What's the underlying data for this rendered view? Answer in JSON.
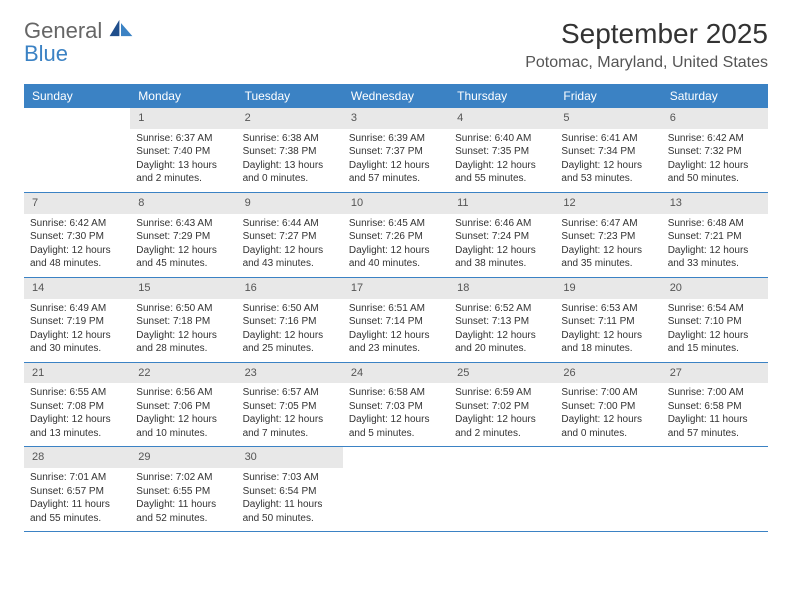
{
  "logo": {
    "line1": "General",
    "line2": "Blue"
  },
  "header": {
    "month_title": "September 2025",
    "location": "Potomac, Maryland, United States"
  },
  "colors": {
    "brand_blue": "#3b82c4",
    "header_bg": "#3b82c4",
    "header_text": "#ffffff",
    "daynum_bg": "#e8e8e8",
    "text": "#333333"
  },
  "weekdays": [
    "Sunday",
    "Monday",
    "Tuesday",
    "Wednesday",
    "Thursday",
    "Friday",
    "Saturday"
  ],
  "weeks": [
    [
      null,
      {
        "n": "1",
        "sr": "Sunrise: 6:37 AM",
        "ss": "Sunset: 7:40 PM",
        "dl": "Daylight: 13 hours and 2 minutes."
      },
      {
        "n": "2",
        "sr": "Sunrise: 6:38 AM",
        "ss": "Sunset: 7:38 PM",
        "dl": "Daylight: 13 hours and 0 minutes."
      },
      {
        "n": "3",
        "sr": "Sunrise: 6:39 AM",
        "ss": "Sunset: 7:37 PM",
        "dl": "Daylight: 12 hours and 57 minutes."
      },
      {
        "n": "4",
        "sr": "Sunrise: 6:40 AM",
        "ss": "Sunset: 7:35 PM",
        "dl": "Daylight: 12 hours and 55 minutes."
      },
      {
        "n": "5",
        "sr": "Sunrise: 6:41 AM",
        "ss": "Sunset: 7:34 PM",
        "dl": "Daylight: 12 hours and 53 minutes."
      },
      {
        "n": "6",
        "sr": "Sunrise: 6:42 AM",
        "ss": "Sunset: 7:32 PM",
        "dl": "Daylight: 12 hours and 50 minutes."
      }
    ],
    [
      {
        "n": "7",
        "sr": "Sunrise: 6:42 AM",
        "ss": "Sunset: 7:30 PM",
        "dl": "Daylight: 12 hours and 48 minutes."
      },
      {
        "n": "8",
        "sr": "Sunrise: 6:43 AM",
        "ss": "Sunset: 7:29 PM",
        "dl": "Daylight: 12 hours and 45 minutes."
      },
      {
        "n": "9",
        "sr": "Sunrise: 6:44 AM",
        "ss": "Sunset: 7:27 PM",
        "dl": "Daylight: 12 hours and 43 minutes."
      },
      {
        "n": "10",
        "sr": "Sunrise: 6:45 AM",
        "ss": "Sunset: 7:26 PM",
        "dl": "Daylight: 12 hours and 40 minutes."
      },
      {
        "n": "11",
        "sr": "Sunrise: 6:46 AM",
        "ss": "Sunset: 7:24 PM",
        "dl": "Daylight: 12 hours and 38 minutes."
      },
      {
        "n": "12",
        "sr": "Sunrise: 6:47 AM",
        "ss": "Sunset: 7:23 PM",
        "dl": "Daylight: 12 hours and 35 minutes."
      },
      {
        "n": "13",
        "sr": "Sunrise: 6:48 AM",
        "ss": "Sunset: 7:21 PM",
        "dl": "Daylight: 12 hours and 33 minutes."
      }
    ],
    [
      {
        "n": "14",
        "sr": "Sunrise: 6:49 AM",
        "ss": "Sunset: 7:19 PM",
        "dl": "Daylight: 12 hours and 30 minutes."
      },
      {
        "n": "15",
        "sr": "Sunrise: 6:50 AM",
        "ss": "Sunset: 7:18 PM",
        "dl": "Daylight: 12 hours and 28 minutes."
      },
      {
        "n": "16",
        "sr": "Sunrise: 6:50 AM",
        "ss": "Sunset: 7:16 PM",
        "dl": "Daylight: 12 hours and 25 minutes."
      },
      {
        "n": "17",
        "sr": "Sunrise: 6:51 AM",
        "ss": "Sunset: 7:14 PM",
        "dl": "Daylight: 12 hours and 23 minutes."
      },
      {
        "n": "18",
        "sr": "Sunrise: 6:52 AM",
        "ss": "Sunset: 7:13 PM",
        "dl": "Daylight: 12 hours and 20 minutes."
      },
      {
        "n": "19",
        "sr": "Sunrise: 6:53 AM",
        "ss": "Sunset: 7:11 PM",
        "dl": "Daylight: 12 hours and 18 minutes."
      },
      {
        "n": "20",
        "sr": "Sunrise: 6:54 AM",
        "ss": "Sunset: 7:10 PM",
        "dl": "Daylight: 12 hours and 15 minutes."
      }
    ],
    [
      {
        "n": "21",
        "sr": "Sunrise: 6:55 AM",
        "ss": "Sunset: 7:08 PM",
        "dl": "Daylight: 12 hours and 13 minutes."
      },
      {
        "n": "22",
        "sr": "Sunrise: 6:56 AM",
        "ss": "Sunset: 7:06 PM",
        "dl": "Daylight: 12 hours and 10 minutes."
      },
      {
        "n": "23",
        "sr": "Sunrise: 6:57 AM",
        "ss": "Sunset: 7:05 PM",
        "dl": "Daylight: 12 hours and 7 minutes."
      },
      {
        "n": "24",
        "sr": "Sunrise: 6:58 AM",
        "ss": "Sunset: 7:03 PM",
        "dl": "Daylight: 12 hours and 5 minutes."
      },
      {
        "n": "25",
        "sr": "Sunrise: 6:59 AM",
        "ss": "Sunset: 7:02 PM",
        "dl": "Daylight: 12 hours and 2 minutes."
      },
      {
        "n": "26",
        "sr": "Sunrise: 7:00 AM",
        "ss": "Sunset: 7:00 PM",
        "dl": "Daylight: 12 hours and 0 minutes."
      },
      {
        "n": "27",
        "sr": "Sunrise: 7:00 AM",
        "ss": "Sunset: 6:58 PM",
        "dl": "Daylight: 11 hours and 57 minutes."
      }
    ],
    [
      {
        "n": "28",
        "sr": "Sunrise: 7:01 AM",
        "ss": "Sunset: 6:57 PM",
        "dl": "Daylight: 11 hours and 55 minutes."
      },
      {
        "n": "29",
        "sr": "Sunrise: 7:02 AM",
        "ss": "Sunset: 6:55 PM",
        "dl": "Daylight: 11 hours and 52 minutes."
      },
      {
        "n": "30",
        "sr": "Sunrise: 7:03 AM",
        "ss": "Sunset: 6:54 PM",
        "dl": "Daylight: 11 hours and 50 minutes."
      },
      null,
      null,
      null,
      null
    ]
  ]
}
